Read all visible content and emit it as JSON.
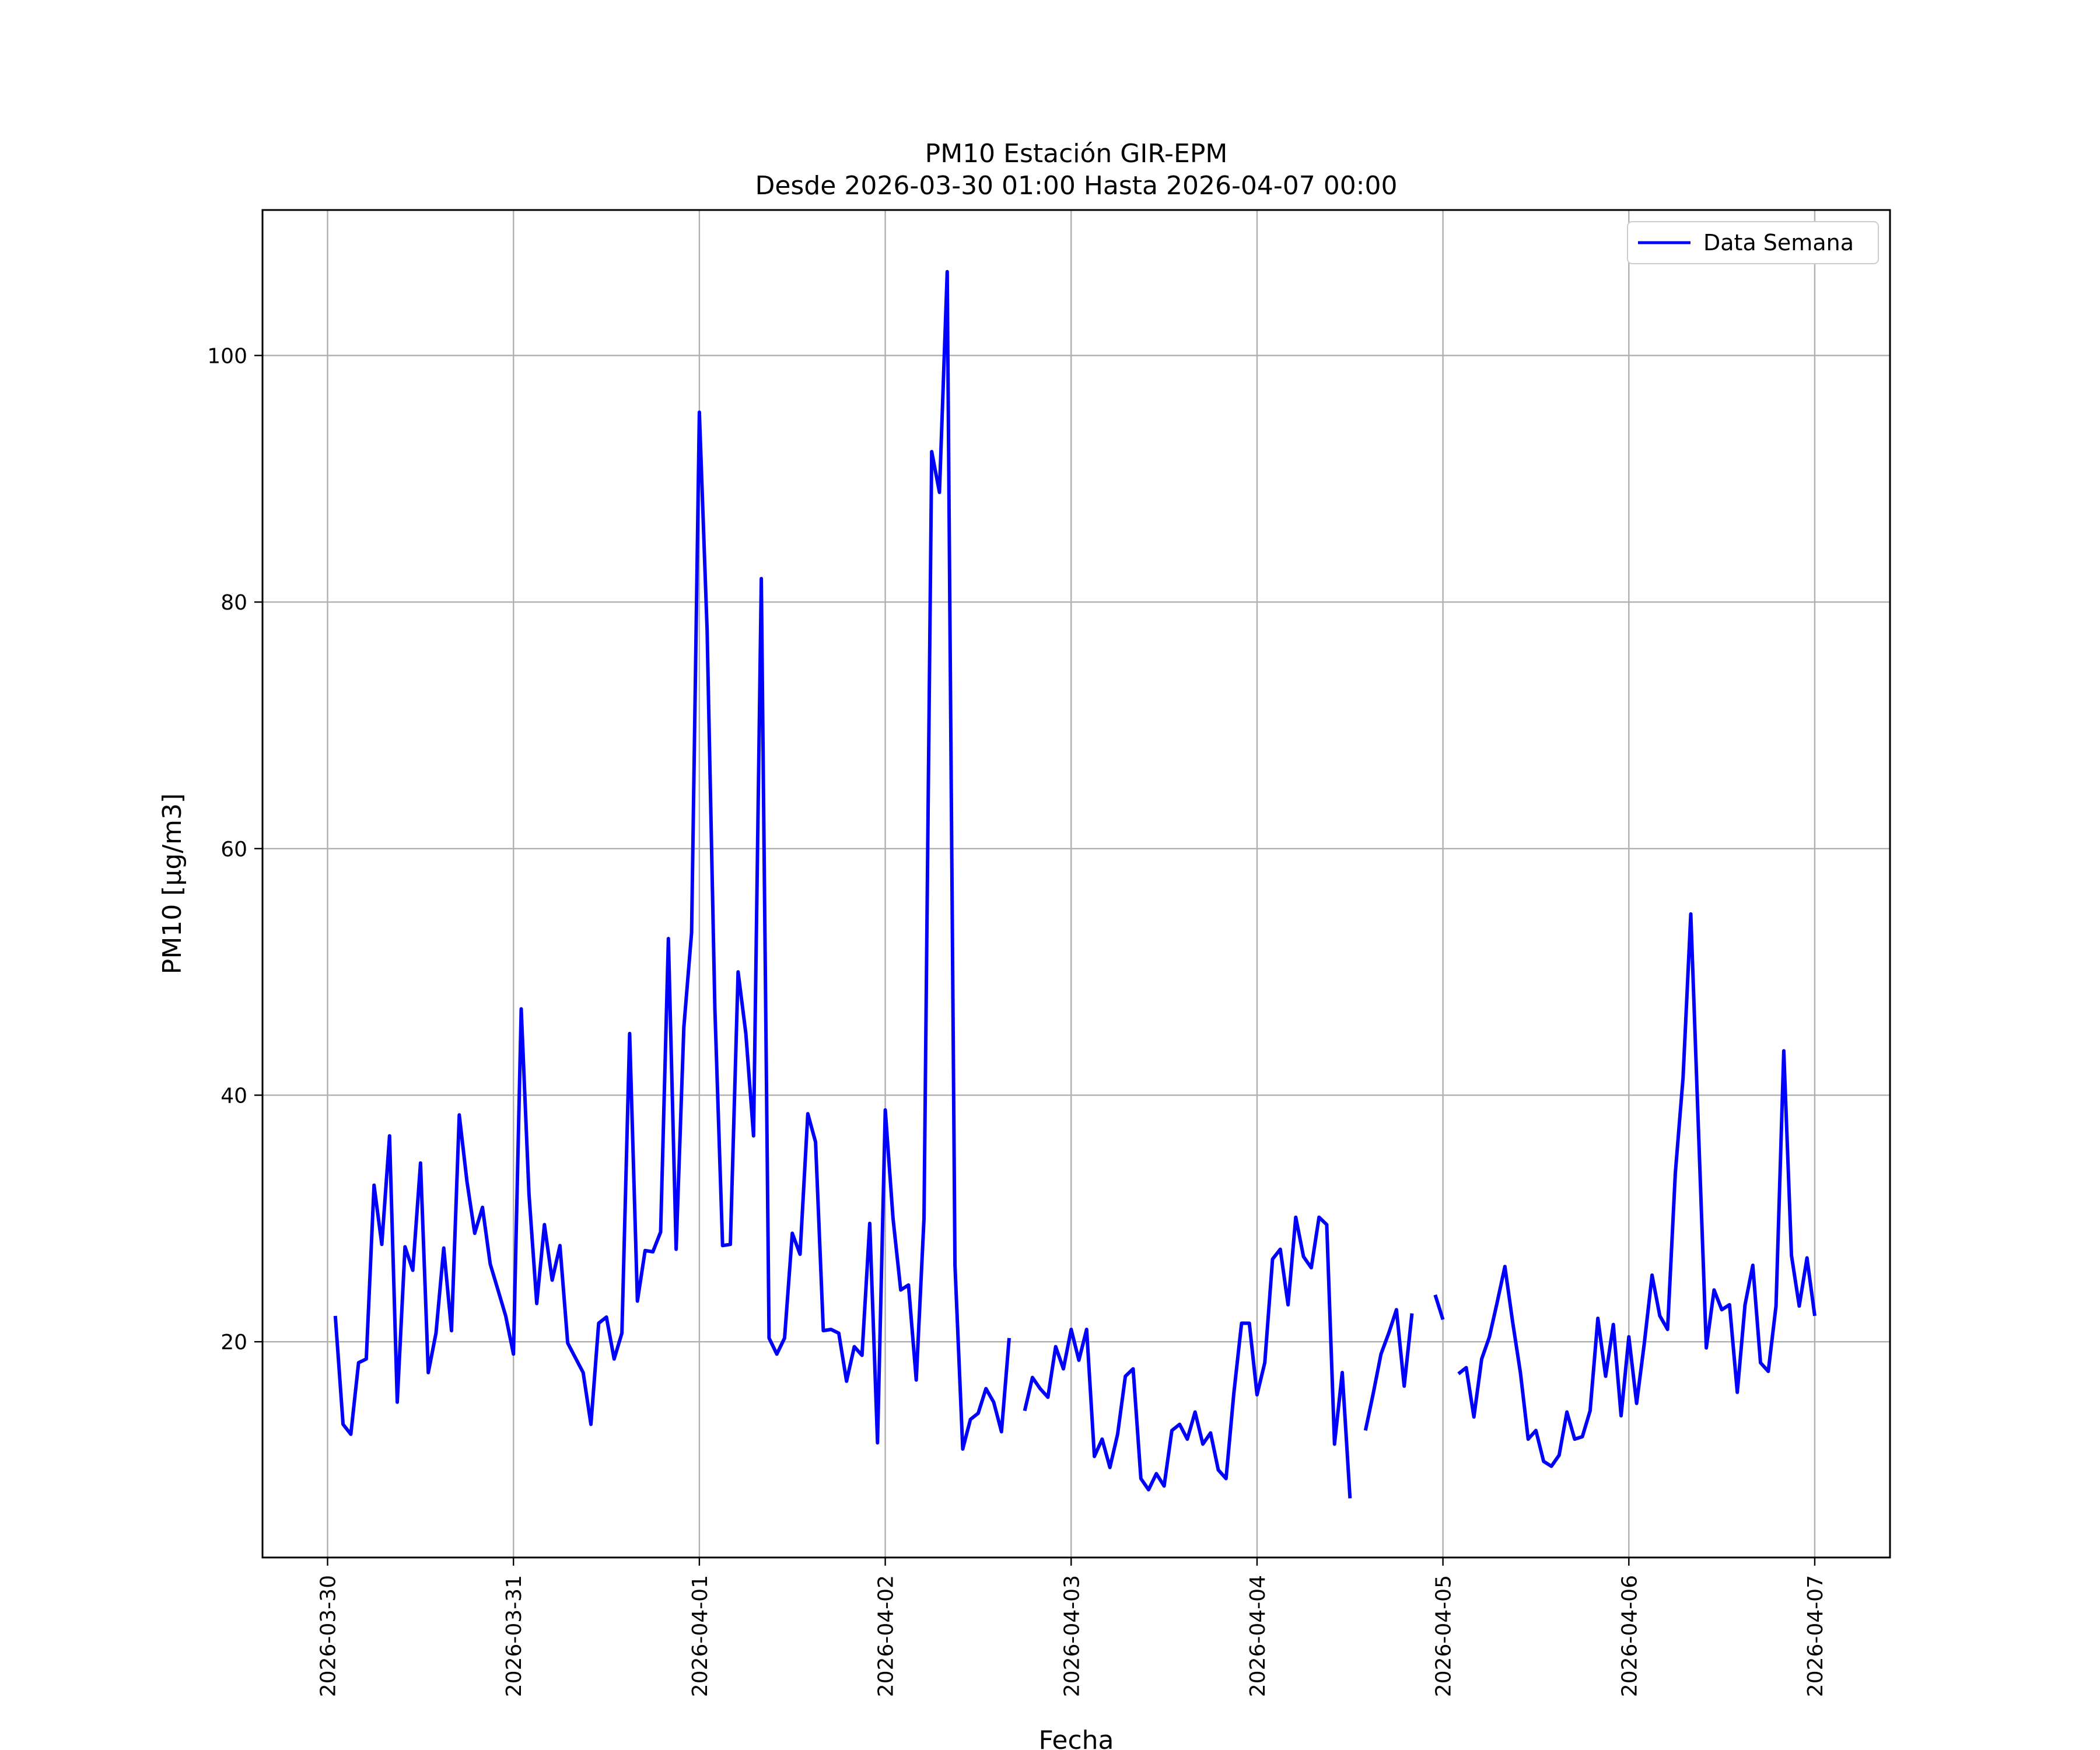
{
  "chart_data": {
    "type": "line",
    "title": "PM10 Estación GIR-EPM",
    "subtitle": "Desde 2026-03-30 01:00 Hasta 2026-04-07 00:00",
    "xlabel": "Fecha",
    "ylabel": "PM10 [μg/m3]",
    "xlim": [
      "2026-03-29T15:36",
      "2026-04-07T09:43"
    ],
    "ylim": [
      2.5,
      111.8
    ],
    "y_ticks": [
      20,
      40,
      60,
      80,
      100
    ],
    "x_ticks": [
      "2026-03-30",
      "2026-03-31",
      "2026-04-01",
      "2026-04-02",
      "2026-04-03",
      "2026-04-04",
      "2026-04-05",
      "2026-04-06",
      "2026-04-07"
    ],
    "grid": true,
    "legend_position": "top-right",
    "series": [
      {
        "name": "Data Semana",
        "color": "#0000ff",
        "points": [
          [
            "2026-03-30T01:00",
            22.1
          ],
          [
            "2026-03-30T02:00",
            13.3
          ],
          [
            "2026-03-30T03:00",
            12.5
          ],
          [
            "2026-03-30T04:00",
            18.3
          ],
          [
            "2026-03-30T05:00",
            18.6
          ],
          [
            "2026-03-30T06:00",
            32.7
          ],
          [
            "2026-03-30T07:00",
            27.9
          ],
          [
            "2026-03-30T08:00",
            36.7
          ],
          [
            "2026-03-30T09:00",
            15.1
          ],
          [
            "2026-03-30T10:00",
            27.7
          ],
          [
            "2026-03-30T11:00",
            25.8
          ],
          [
            "2026-03-30T12:00",
            34.5
          ],
          [
            "2026-03-30T13:00",
            17.5
          ],
          [
            "2026-03-30T14:00",
            20.7
          ],
          [
            "2026-03-30T15:00",
            27.6
          ],
          [
            "2026-03-30T16:00",
            20.9
          ],
          [
            "2026-03-30T17:00",
            38.4
          ],
          [
            "2026-03-30T18:00",
            33.0
          ],
          [
            "2026-03-30T19:00",
            28.8
          ],
          [
            "2026-03-30T20:00",
            30.9
          ],
          [
            "2026-03-30T21:00",
            26.3
          ],
          [
            "2026-03-30T22:00",
            24.2
          ],
          [
            "2026-03-30T23:00",
            22.1
          ],
          [
            "2026-03-31T00:00",
            19.0
          ],
          [
            "2026-03-31T01:00",
            47.0
          ],
          [
            "2026-03-31T02:00",
            32.0
          ],
          [
            "2026-03-31T03:00",
            23.1
          ],
          [
            "2026-03-31T04:00",
            29.5
          ],
          [
            "2026-03-31T05:00",
            25.0
          ],
          [
            "2026-03-31T06:00",
            27.8
          ],
          [
            "2026-03-31T07:00",
            19.9
          ],
          [
            "2026-03-31T08:00",
            18.7
          ],
          [
            "2026-03-31T09:00",
            17.5
          ],
          [
            "2026-03-31T10:00",
            13.3
          ],
          [
            "2026-03-31T11:00",
            21.5
          ],
          [
            "2026-03-31T12:00",
            22.0
          ],
          [
            "2026-03-31T13:00",
            18.6
          ],
          [
            "2026-03-31T14:00",
            20.7
          ],
          [
            "2026-03-31T15:00",
            45.0
          ],
          [
            "2026-03-31T16:00",
            23.3
          ],
          [
            "2026-03-31T17:00",
            27.4
          ],
          [
            "2026-03-31T18:00",
            27.3
          ],
          [
            "2026-03-31T19:00",
            28.9
          ],
          [
            "2026-03-31T20:00",
            52.7
          ],
          [
            "2026-03-31T21:00",
            27.5
          ],
          [
            "2026-03-31T22:00",
            45.5
          ],
          [
            "2026-03-31T23:00",
            53.2
          ],
          [
            "2026-04-01T00:00",
            95.4
          ],
          [
            "2026-04-01T01:00",
            77.7
          ],
          [
            "2026-04-01T02:00",
            47.0
          ],
          [
            "2026-04-01T03:00",
            27.8
          ],
          [
            "2026-04-01T04:00",
            27.9
          ],
          [
            "2026-04-01T05:00",
            50.0
          ],
          [
            "2026-04-01T06:00",
            45.0
          ],
          [
            "2026-04-01T07:00",
            36.7
          ],
          [
            "2026-04-01T08:00",
            81.9
          ],
          [
            "2026-04-01T09:00",
            20.3
          ],
          [
            "2026-04-01T10:00",
            19.0
          ],
          [
            "2026-04-01T11:00",
            20.3
          ],
          [
            "2026-04-01T12:00",
            28.8
          ],
          [
            "2026-04-01T13:00",
            27.1
          ],
          [
            "2026-04-01T14:00",
            38.5
          ],
          [
            "2026-04-01T15:00",
            36.2
          ],
          [
            "2026-04-01T16:00",
            20.9
          ],
          [
            "2026-04-01T17:00",
            21.0
          ],
          [
            "2026-04-01T18:00",
            20.7
          ],
          [
            "2026-04-01T19:00",
            16.8
          ],
          [
            "2026-04-01T20:00",
            19.6
          ],
          [
            "2026-04-01T21:00",
            18.9
          ],
          [
            "2026-04-01T22:00",
            29.6
          ],
          [
            "2026-04-01T23:00",
            11.8
          ],
          [
            "2026-04-02T00:00",
            38.8
          ],
          [
            "2026-04-02T01:00",
            30.0
          ],
          [
            "2026-04-02T02:00",
            24.2
          ],
          [
            "2026-04-02T03:00",
            24.6
          ],
          [
            "2026-04-02T04:00",
            16.9
          ],
          [
            "2026-04-02T05:00",
            30.0
          ],
          [
            "2026-04-02T06:00",
            92.2
          ],
          [
            "2026-04-02T07:00",
            88.9
          ],
          [
            "2026-04-02T08:00",
            106.8
          ],
          [
            "2026-04-02T09:00",
            26.2
          ],
          [
            "2026-04-02T10:00",
            11.3
          ],
          [
            "2026-04-02T11:00",
            13.7
          ],
          [
            "2026-04-02T12:00",
            14.2
          ],
          [
            "2026-04-02T13:00",
            16.2
          ],
          [
            "2026-04-02T14:00",
            15.1
          ],
          [
            "2026-04-02T15:00",
            12.7
          ],
          [
            "2026-04-02T16:00",
            20.3
          ],
          null,
          [
            "2026-04-02T18:00",
            14.4
          ],
          [
            "2026-04-02T19:00",
            17.1
          ],
          [
            "2026-04-02T20:00",
            16.2
          ],
          [
            "2026-04-02T21:00",
            15.5
          ],
          [
            "2026-04-02T22:00",
            19.6
          ],
          [
            "2026-04-02T23:00",
            17.8
          ],
          [
            "2026-04-03T00:00",
            21.0
          ],
          [
            "2026-04-03T01:00",
            18.5
          ],
          [
            "2026-04-03T02:00",
            21.0
          ],
          [
            "2026-04-03T03:00",
            10.7
          ],
          [
            "2026-04-03T04:00",
            12.1
          ],
          [
            "2026-04-03T05:00",
            9.8
          ],
          [
            "2026-04-03T06:00",
            12.5
          ],
          [
            "2026-04-03T07:00",
            17.2
          ],
          [
            "2026-04-03T08:00",
            17.8
          ],
          [
            "2026-04-03T09:00",
            8.9
          ],
          [
            "2026-04-03T10:00",
            8.0
          ],
          [
            "2026-04-03T11:00",
            9.3
          ],
          [
            "2026-04-03T12:00",
            8.3
          ],
          [
            "2026-04-03T13:00",
            12.8
          ],
          [
            "2026-04-03T14:00",
            13.3
          ],
          [
            "2026-04-03T15:00",
            12.1
          ],
          [
            "2026-04-03T16:00",
            14.3
          ],
          [
            "2026-04-03T17:00",
            11.7
          ],
          [
            "2026-04-03T18:00",
            12.6
          ],
          [
            "2026-04-03T19:00",
            9.6
          ],
          [
            "2026-04-03T20:00",
            8.9
          ],
          [
            "2026-04-03T21:00",
            15.8
          ],
          [
            "2026-04-03T22:00",
            21.5
          ],
          [
            "2026-04-03T23:00",
            21.5
          ],
          [
            "2026-04-04T00:00",
            15.7
          ],
          [
            "2026-04-04T01:00",
            18.3
          ],
          [
            "2026-04-04T02:00",
            26.7
          ],
          [
            "2026-04-04T03:00",
            27.5
          ],
          [
            "2026-04-04T04:00",
            23.0
          ],
          [
            "2026-04-04T05:00",
            30.1
          ],
          [
            "2026-04-04T06:00",
            26.9
          ],
          [
            "2026-04-04T07:00",
            26.0
          ],
          [
            "2026-04-04T08:00",
            30.1
          ],
          [
            "2026-04-04T09:00",
            29.5
          ],
          [
            "2026-04-04T10:00",
            11.7
          ],
          [
            "2026-04-04T11:00",
            17.5
          ],
          [
            "2026-04-04T12:00",
            7.3
          ],
          null,
          [
            "2026-04-04T14:00",
            12.8
          ],
          [
            "2026-04-04T15:00",
            15.8
          ],
          [
            "2026-04-04T16:00",
            19.0
          ],
          [
            "2026-04-04T17:00",
            20.7
          ],
          [
            "2026-04-04T18:00",
            22.6
          ],
          [
            "2026-04-04T19:00",
            16.4
          ],
          [
            "2026-04-04T20:00",
            22.3
          ],
          null,
          [
            "2026-04-04T23:00",
            23.8
          ],
          [
            "2026-04-05T00:00",
            21.8
          ],
          null,
          [
            "2026-04-05T02:00",
            17.4
          ],
          [
            "2026-04-05T03:00",
            17.9
          ],
          [
            "2026-04-05T04:00",
            13.9
          ],
          [
            "2026-04-05T05:00",
            18.6
          ],
          [
            "2026-04-05T06:00",
            20.4
          ],
          [
            "2026-04-05T07:00",
            23.2
          ],
          [
            "2026-04-05T08:00",
            26.1
          ],
          [
            "2026-04-05T09:00",
            21.6
          ],
          [
            "2026-04-05T10:00",
            17.5
          ],
          [
            "2026-04-05T11:00",
            12.1
          ],
          [
            "2026-04-05T12:00",
            12.8
          ],
          [
            "2026-04-05T13:00",
            10.3
          ],
          [
            "2026-04-05T14:00",
            9.9
          ],
          [
            "2026-04-05T15:00",
            10.8
          ],
          [
            "2026-04-05T16:00",
            14.3
          ],
          [
            "2026-04-05T17:00",
            12.1
          ],
          [
            "2026-04-05T18:00",
            12.3
          ],
          [
            "2026-04-05T19:00",
            14.4
          ],
          [
            "2026-04-05T20:00",
            21.9
          ],
          [
            "2026-04-05T21:00",
            17.2
          ],
          [
            "2026-04-05T22:00",
            21.4
          ],
          [
            "2026-04-05T23:00",
            14.0
          ],
          [
            "2026-04-06T00:00",
            20.4
          ],
          [
            "2026-04-06T01:00",
            15.0
          ],
          [
            "2026-04-06T02:00",
            19.9
          ],
          [
            "2026-04-06T03:00",
            25.4
          ],
          [
            "2026-04-06T04:00",
            22.1
          ],
          [
            "2026-04-06T05:00",
            21.0
          ],
          [
            "2026-04-06T06:00",
            33.7
          ],
          [
            "2026-04-06T07:00",
            41.4
          ],
          [
            "2026-04-06T08:00",
            54.7
          ],
          [
            "2026-04-06T09:00",
            37.0
          ],
          [
            "2026-04-06T10:00",
            19.5
          ],
          [
            "2026-04-06T11:00",
            24.2
          ],
          [
            "2026-04-06T12:00",
            22.6
          ],
          [
            "2026-04-06T13:00",
            23.0
          ],
          [
            "2026-04-06T14:00",
            15.9
          ],
          [
            "2026-04-06T15:00",
            23.0
          ],
          [
            "2026-04-06T16:00",
            26.2
          ],
          [
            "2026-04-06T17:00",
            18.3
          ],
          [
            "2026-04-06T18:00",
            17.6
          ],
          [
            "2026-04-06T19:00",
            22.9
          ],
          [
            "2026-04-06T20:00",
            43.6
          ],
          [
            "2026-04-06T21:00",
            27.0
          ],
          [
            "2026-04-06T22:00",
            22.9
          ],
          [
            "2026-04-06T23:00",
            26.8
          ],
          [
            "2026-04-07T00:00",
            22.1
          ]
        ]
      }
    ]
  }
}
